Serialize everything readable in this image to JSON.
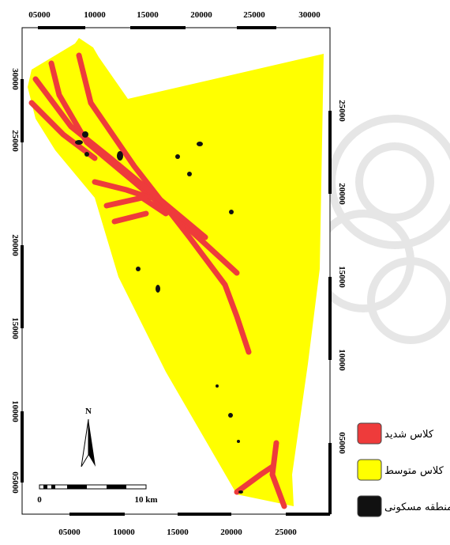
{
  "map": {
    "top_ticks": [
      "05000",
      "10000",
      "15000",
      "20000",
      "25000",
      "30000"
    ],
    "bottom_ticks": [
      "05000",
      "10000",
      "15000",
      "20000",
      "25000"
    ],
    "left_ticks": [
      "30000",
      "25000",
      "20000",
      "15000",
      "10000",
      "05000"
    ],
    "right_ticks": [
      "25000",
      "20000",
      "15000",
      "10000",
      "05000"
    ],
    "north": "N",
    "scale_start": "0",
    "scale_end": "10 km",
    "legend": [
      {
        "label": "کلاس شدید",
        "color": "#ee3b3b"
      },
      {
        "label": "کلاس متوسط",
        "color": "#ffff00"
      },
      {
        "label": "منطقه مسکونی",
        "color": "#111111"
      }
    ]
  }
}
